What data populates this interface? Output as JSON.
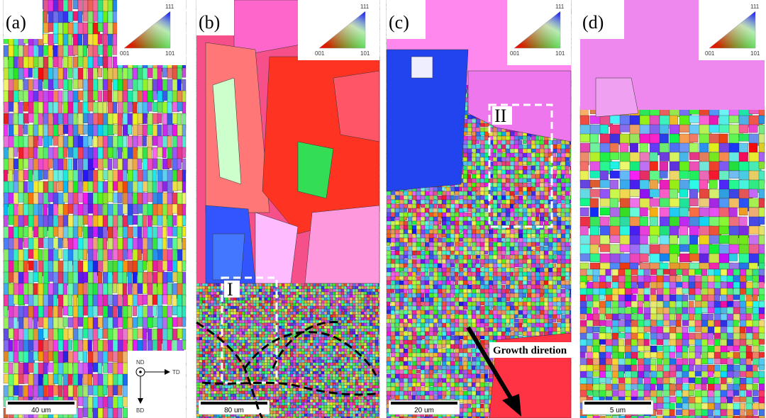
{
  "panels": [
    {
      "label": "(a)",
      "scale_bar": "40 um",
      "legend": {
        "top": "111",
        "left": "001",
        "right": "101"
      }
    },
    {
      "label": "(b)",
      "scale_bar": "80 um",
      "legend": {
        "top": "111",
        "left": "001",
        "right": "101"
      }
    },
    {
      "label": "(c)",
      "scale_bar": "20 um",
      "legend": {
        "top": "111",
        "left": "001",
        "right": "101"
      }
    },
    {
      "label": "(d)",
      "scale_bar": "5 um",
      "legend": {
        "top": "111",
        "left": "001",
        "right": "101"
      }
    }
  ],
  "axes": {
    "nd": "ND",
    "td": "TD",
    "bd": "BD"
  },
  "regions": [
    "I",
    "II"
  ],
  "arrow_label": "Growth diretion"
}
